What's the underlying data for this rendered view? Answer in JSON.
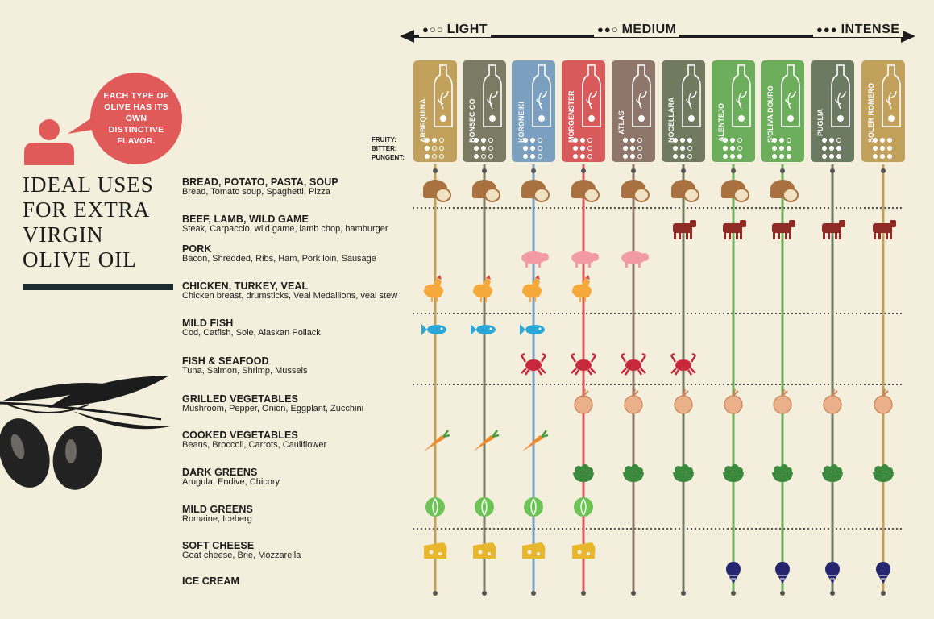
{
  "scale": {
    "light_dots": "●○○",
    "light": "LIGHT",
    "medium_dots": "●●○",
    "medium": "MEDIUM",
    "intense_dots": "●●●",
    "intense": "INTENSE"
  },
  "bubble_text": "EACH TYPE OF OLIVE HAS ITS OWN DISTINCTIVE FLAVOR.",
  "title_lines": [
    "IDEAL USES",
    "FOR EXTRA",
    "VIRGIN",
    "OLIVE OIL"
  ],
  "attribute_labels": {
    "fruity": "FRUITY:",
    "bitter": "BITTER:",
    "pungent": "PUNGENT:"
  },
  "colors": {
    "background": "#f4efdc",
    "title_bar": "#1c2b2f",
    "bubble": "#e05a5a"
  },
  "oils": [
    {
      "name": "ARBEQUINA",
      "color": "#c2a15c",
      "fruity": 2,
      "bitter": 1,
      "pungent": 1
    },
    {
      "name": "BONSEC CO",
      "color": "#7b7b63",
      "fruity": 2,
      "bitter": 2,
      "pungent": 1
    },
    {
      "name": "KORONEIKI",
      "color": "#7b9fbf",
      "fruity": 2,
      "bitter": 2,
      "pungent": 2
    },
    {
      "name": "MORGENSTER",
      "color": "#d95a5a",
      "fruity": 2,
      "bitter": 2,
      "pungent": 2
    },
    {
      "name": "ATLAS",
      "color": "#8f766a",
      "fruity": 2,
      "bitter": 2,
      "pungent": 2
    },
    {
      "name": "NOCELLARA",
      "color": "#6f7a5e",
      "fruity": 3,
      "bitter": 2,
      "pungent": 2
    },
    {
      "name": "ALENTEJO",
      "color": "#6cae5b",
      "fruity": 2,
      "bitter": 2,
      "pungent": 3
    },
    {
      "name": "S'OLIVA DOURO",
      "color": "#6cae5b",
      "fruity": 2,
      "bitter": 3,
      "pungent": 3
    },
    {
      "name": "PUGLIA",
      "color": "#6c7a62",
      "fruity": 2,
      "bitter": 3,
      "pungent": 3
    },
    {
      "name": "SOLER ROMERO",
      "color": "#c2a15c",
      "fruity": 3,
      "bitter": 3,
      "pungent": 3
    }
  ],
  "foods": [
    {
      "title": "BREAD, POTATO, PASTA, SOUP",
      "desc": "Bread, Tomato soup, Spaghetti, Pizza",
      "icon": "bread-icon",
      "oils": [
        0,
        1,
        2,
        3,
        4,
        5,
        6,
        7
      ]
    },
    {
      "title": "BEEF, LAMB, WILD GAME",
      "desc": "Steak, Carpaccio, wild game, lamb chop, hamburger",
      "icon": "cow-icon",
      "oils": [
        5,
        6,
        7,
        8,
        9
      ]
    },
    {
      "title": "PORK",
      "desc": "Bacon, Shredded, Ribs, Ham, Pork loin, Sausage",
      "icon": "pig-icon",
      "oils": [
        2,
        3,
        4
      ]
    },
    {
      "title": "CHICKEN, TURKEY, VEAL",
      "desc": "Chicken breast, drumsticks, Veal Medallions, veal stew",
      "icon": "chicken-icon",
      "oils": [
        0,
        1,
        2,
        3
      ]
    },
    {
      "title": "MILD FISH",
      "desc": "Cod, Catfish, Sole, Alaskan Pollack",
      "icon": "fish-icon",
      "oils": [
        0,
        1,
        2
      ]
    },
    {
      "title": "FISH & SEAFOOD",
      "desc": "Tuna, Salmon, Shrimp, Mussels",
      "icon": "crab-icon",
      "oils": [
        2,
        3,
        4,
        5
      ]
    },
    {
      "title": "GRILLED VEGETABLES",
      "desc": "Mushroom, Pepper, Onion, Eggplant, Zucchini",
      "icon": "onion-icon",
      "oils": [
        3,
        4,
        5,
        6,
        7,
        8,
        9
      ]
    },
    {
      "title": "COOKED VEGETABLES",
      "desc": "Beans, Broccoli, Carrots, Cauliflower",
      "icon": "carrot-icon",
      "oils": [
        0,
        1,
        2
      ]
    },
    {
      "title": "DARK GREENS",
      "desc": "Arugula, Endive, Chicory",
      "icon": "greens-bowl-icon",
      "oils": [
        3,
        4,
        5,
        6,
        7,
        8,
        9
      ]
    },
    {
      "title": "MILD GREENS",
      "desc": "Romaine, Iceberg",
      "icon": "lettuce-icon",
      "oils": [
        0,
        1,
        2,
        3
      ]
    },
    {
      "title": "SOFT CHEESE",
      "desc": "Goat cheese, Brie, Mozzarella",
      "icon": "cheese-icon",
      "oils": [
        0,
        1,
        2,
        3
      ]
    },
    {
      "title": "ICE CREAM",
      "desc": "",
      "icon": "ice-cream-icon",
      "oils": [
        6,
        7,
        8,
        9
      ]
    }
  ]
}
